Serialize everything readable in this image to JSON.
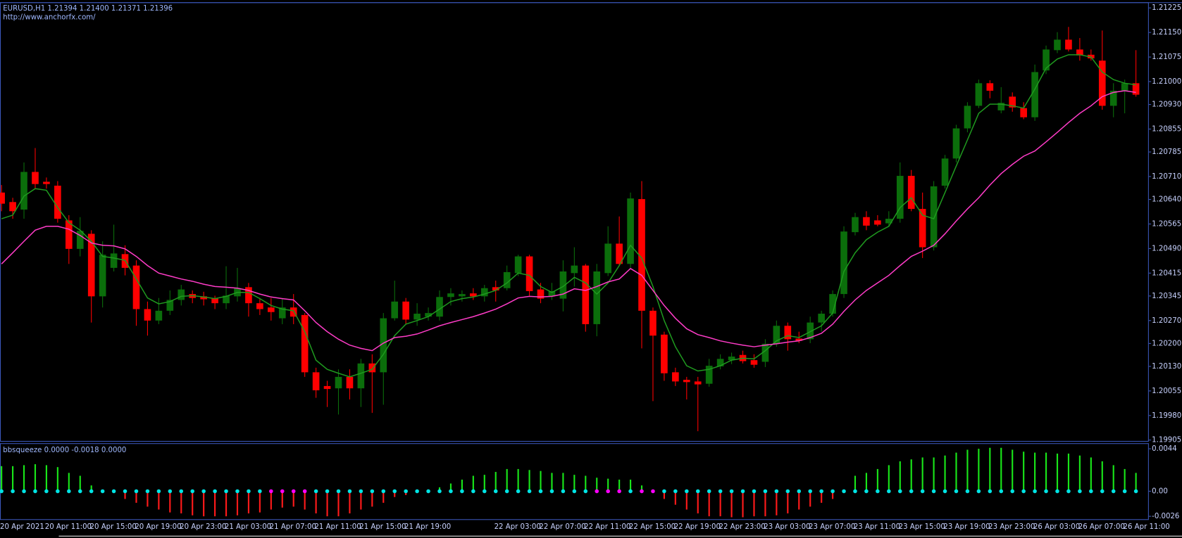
{
  "chart_data": [
    {
      "type": "candlestick",
      "title": "EURUSD,H1  1.21394 1.21400 1.21371 1.21396",
      "subtitle": "http://www.anchorfx.com/",
      "categories": [
        "20 Apr 2021",
        null,
        null,
        null,
        "20 Apr 11:00",
        null,
        null,
        null,
        "20 Apr 15:00",
        null,
        null,
        null,
        "20 Apr 19:00",
        null,
        null,
        null,
        "20 Apr 23:00",
        null,
        null,
        null,
        "21 Apr 03:00",
        null,
        null,
        null,
        "21 Apr 07:00",
        null,
        null,
        null,
        "21 Apr 11:00",
        null,
        null,
        null,
        "21 Apr 15:00",
        null,
        null,
        null,
        "21 Apr 19:00",
        null,
        null,
        null,
        null,
        null,
        null,
        null,
        "22 Apr 03:00",
        null,
        null,
        null,
        "22 Apr 07:00",
        null,
        null,
        null,
        "22 Apr 11:00",
        null,
        null,
        null,
        "22 Apr 15:00",
        null,
        null,
        null,
        "22 Apr 19:00",
        null,
        null,
        null,
        "22 Apr 23:00",
        null,
        null,
        null,
        "23 Apr 03:00",
        null,
        null,
        null,
        "23 Apr 07:00",
        null,
        null,
        null,
        "23 Apr 11:00",
        null,
        null,
        null,
        "23 Apr 15:00",
        null,
        null,
        null,
        "23 Apr 19:00",
        null,
        null,
        null,
        "23 Apr 23:00",
        null,
        null,
        null,
        "26 Apr 03:00",
        null,
        null,
        null,
        "26 Apr 07:00",
        null,
        null,
        null,
        "26 Apr 11:00",
        null
      ],
      "open": [
        1.20661,
        1.20632,
        1.20609,
        1.20724,
        1.20694,
        1.20682,
        1.20576,
        1.20489,
        1.20535,
        1.20344,
        1.20431,
        1.20473,
        1.20438,
        1.20305,
        1.2027,
        1.203,
        1.20333,
        1.20351,
        1.20344,
        1.20337,
        1.20323,
        1.20344,
        1.20372,
        1.20323,
        1.2031,
        1.20277,
        1.2031,
        1.20287,
        1.20112,
        1.2007,
        1.20063,
        1.20098,
        1.20063,
        1.20139,
        1.20112,
        1.20277,
        1.20328,
        1.20273,
        1.20282,
        1.20282,
        1.20342,
        1.20344,
        1.20353,
        1.20344,
        1.20372,
        1.20369,
        1.20415,
        1.20466,
        1.20365,
        1.20344,
        1.20337,
        1.20415,
        1.20438,
        1.20259,
        1.20415,
        1.20505,
        1.20443,
        1.20641,
        1.203,
        1.20227,
        1.20112,
        1.20089,
        1.20084,
        1.20077,
        1.2013,
        1.20149,
        1.20165,
        1.20149,
        1.20144,
        1.20199,
        1.20254,
        1.20215,
        1.20213,
        1.20264,
        1.20291,
        1.20351,
        1.2054,
        1.20586,
        1.20576,
        1.20567,
        1.20581,
        1.20712,
        1.20611,
        1.20494,
        1.20682,
        1.20765,
        1.20857,
        1.20926,
        1.20995,
        1.20912,
        1.20954,
        1.20919,
        1.20891,
        1.21034,
        1.21096,
        1.21128,
        1.21098,
        1.21082,
        1.21064,
        1.20926,
        1.20972,
        1.20995
      ],
      "high": [
        1.20684,
        1.20645,
        1.20753,
        1.20797,
        1.20707,
        1.20696,
        1.20592,
        1.20586,
        1.20546,
        1.20512,
        1.20563,
        1.205,
        1.20454,
        1.20328,
        1.20339,
        1.20362,
        1.20379,
        1.20362,
        1.20358,
        1.20346,
        1.20436,
        1.20431,
        1.20385,
        1.20339,
        1.20339,
        1.20339,
        1.20351,
        1.20293,
        1.20126,
        1.20086,
        1.20121,
        1.20121,
        1.20153,
        1.20167,
        1.20293,
        1.20392,
        1.20339,
        1.20323,
        1.2031,
        1.20362,
        1.20369,
        1.20362,
        1.20369,
        1.20379,
        1.20392,
        1.20438,
        1.20471,
        1.20471,
        1.20385,
        1.20385,
        1.20454,
        1.20494,
        1.20443,
        1.20443,
        1.20558,
        1.20588,
        1.20661,
        1.20696,
        1.2031,
        1.20236,
        1.20126,
        1.20098,
        1.20098,
        1.20153,
        1.20167,
        1.20172,
        1.20178,
        1.20167,
        1.20213,
        1.2027,
        1.20264,
        1.20236,
        1.20282,
        1.203,
        1.20362,
        1.20558,
        1.20599,
        1.20604,
        1.20592,
        1.20604,
        1.20753,
        1.2073,
        1.20661,
        1.20696,
        1.20776,
        1.20868,
        1.20937,
        1.21006,
        1.21004,
        1.20983,
        1.20967,
        1.20937,
        1.21052,
        1.2111,
        1.21151,
        1.21167,
        1.21133,
        1.21098,
        1.21156,
        1.20995,
        1.21006,
        1.21096
      ],
      "low": [
        1.20604,
        1.20581,
        1.20581,
        1.20673,
        1.20673,
        1.20569,
        1.20443,
        1.20466,
        1.20264,
        1.2031,
        1.2042,
        1.20408,
        1.20254,
        1.20224,
        1.20259,
        1.20287,
        1.20316,
        1.20323,
        1.20316,
        1.20305,
        1.20305,
        1.20328,
        1.20282,
        1.20287,
        1.2027,
        1.20259,
        1.20259,
        1.20098,
        1.20034,
        1.20006,
        1.19983,
        1.20029,
        1.20006,
        1.19988,
        1.20013,
        1.2027,
        1.20259,
        1.20254,
        1.2027,
        1.2027,
        1.20316,
        1.20328,
        1.20333,
        1.20328,
        1.20328,
        1.20362,
        1.20406,
        1.20346,
        1.20323,
        1.20333,
        1.20298,
        1.20374,
        1.20236,
        1.20222,
        1.20406,
        1.20438,
        1.20431,
        1.20185,
        1.20024,
        1.20086,
        1.2007,
        1.20029,
        1.19932,
        1.20068,
        1.20121,
        1.20137,
        1.20139,
        1.20126,
        1.20128,
        1.2019,
        1.20178,
        1.20201,
        1.20201,
        1.20236,
        1.20282,
        1.20339,
        1.2053,
        1.20546,
        1.20558,
        1.20558,
        1.20569,
        1.20604,
        1.20461,
        1.20484,
        1.20673,
        1.20753,
        1.20845,
        1.20919,
        1.20949,
        1.20903,
        1.20908,
        1.20885,
        1.2088,
        1.21023,
        1.21087,
        1.21092,
        1.21064,
        1.21064,
        1.20914,
        1.20891,
        1.20903,
        1.20954
      ],
      "close": [
        1.20627,
        1.20604,
        1.20724,
        1.20687,
        1.20687,
        1.20581,
        1.20489,
        1.20544,
        1.20344,
        1.20471,
        1.20475,
        1.20431,
        1.20305,
        1.2027,
        1.203,
        1.20333,
        1.20365,
        1.20339,
        1.20335,
        1.20323,
        1.20346,
        1.20369,
        1.20323,
        1.20305,
        1.20296,
        1.2031,
        1.20282,
        1.20112,
        1.20057,
        1.20061,
        1.20098,
        1.20063,
        1.20139,
        1.20112,
        1.20277,
        1.20328,
        1.20273,
        1.20291,
        1.20293,
        1.20342,
        1.20353,
        1.20351,
        1.20344,
        1.20369,
        1.20362,
        1.20418,
        1.20466,
        1.2036,
        1.20337,
        1.2036,
        1.2042,
        1.20438,
        1.20259,
        1.2042,
        1.20505,
        1.20443,
        1.20643,
        1.203,
        1.20224,
        1.20109,
        1.20084,
        1.20082,
        1.20075,
        1.20132,
        1.20153,
        1.2016,
        1.20146,
        1.20135,
        1.20199,
        1.20254,
        1.20213,
        1.20208,
        1.20264,
        1.20291,
        1.20351,
        1.20542,
        1.20586,
        1.2056,
        1.20563,
        1.20581,
        1.20712,
        1.20611,
        1.20494,
        1.2068,
        1.20765,
        1.20857,
        1.20926,
        1.20995,
        1.20972,
        1.20935,
        1.20921,
        1.20891,
        1.21029,
        1.21098,
        1.21128,
        1.21098,
        1.2108,
        1.21071,
        1.20926,
        1.20972,
        1.20995,
        1.2096
      ],
      "up_color": "#0b6e0b",
      "down_color": "#ff0000",
      "series": [
        {
          "color": "#1f9a1f",
          "values": [
            1.20581,
            1.20592,
            1.2065,
            1.20673,
            1.20668,
            1.20615,
            1.20569,
            1.20546,
            1.20512,
            1.20466,
            1.20461,
            1.20454,
            1.20397,
            1.20339,
            1.20321,
            1.20328,
            1.20344,
            1.20346,
            1.20342,
            1.20337,
            1.20344,
            1.20356,
            1.20356,
            1.20337,
            1.20316,
            1.20305,
            1.203,
            1.20236,
            1.20149,
            1.20121,
            1.20109,
            1.20098,
            1.20109,
            1.20121,
            1.20167,
            1.20224,
            1.20259,
            1.2027,
            1.20282,
            1.20305,
            1.20328,
            1.20337,
            1.20342,
            1.20351,
            1.20362,
            1.20385,
            1.20415,
            1.20408,
            1.20374,
            1.20356,
            1.20374,
            1.20402,
            1.20385,
            1.20351,
            1.20385,
            1.20438,
            1.205,
            1.20461,
            1.20374,
            1.2027,
            1.2019,
            1.20132,
            1.20116,
            1.20121,
            1.20132,
            1.20149,
            1.20155,
            1.20153,
            1.20178,
            1.20208,
            1.20224,
            1.20218,
            1.20236,
            1.20254,
            1.20293,
            1.2042,
            1.20477,
            1.20517,
            1.2054,
            1.20558,
            1.20615,
            1.20645,
            1.20592,
            1.20581,
            1.20661,
            1.20742,
            1.20822,
            1.20903,
            1.20931,
            1.20931,
            1.20926,
            1.20919,
            1.20977,
            1.21041,
            1.21069,
            1.21082,
            1.21082,
            1.21075,
            1.21029,
            1.21006,
            1.20995,
            1.2099
          ]
        },
        {
          "color": "#ff3cc8",
          "values": [
            1.20443,
            1.20477,
            1.20512,
            1.20546,
            1.20558,
            1.20558,
            1.20549,
            1.2053,
            1.20507,
            1.205,
            1.20498,
            1.20489,
            1.20466,
            1.20438,
            1.20415,
            1.20406,
            1.20397,
            1.2039,
            1.20381,
            1.20374,
            1.20372,
            1.20369,
            1.20362,
            1.20351,
            1.20342,
            1.20337,
            1.20333,
            1.203,
            1.20264,
            1.20236,
            1.20213,
            1.20195,
            1.20185,
            1.20178,
            1.20201,
            1.20218,
            1.20222,
            1.20229,
            1.20241,
            1.20254,
            1.20264,
            1.20273,
            1.20282,
            1.20293,
            1.20305,
            1.20321,
            1.20339,
            1.20344,
            1.20342,
            1.20344,
            1.20351,
            1.20367,
            1.20362,
            1.20374,
            1.20388,
            1.20397,
            1.20429,
            1.20408,
            1.20362,
            1.20316,
            1.20277,
            1.20245,
            1.20227,
            1.20218,
            1.20208,
            1.20201,
            1.20195,
            1.2019,
            1.20195,
            1.20199,
            1.20204,
            1.20208,
            1.20218,
            1.20231,
            1.20259,
            1.20298,
            1.20333,
            1.20362,
            1.20385,
            1.20408,
            1.20438,
            1.20466,
            1.20482,
            1.205,
            1.20535,
            1.20574,
            1.20611,
            1.20645,
            1.20684,
            1.20719,
            1.20747,
            1.20772,
            1.20788,
            1.20816,
            1.20845,
            1.20875,
            1.20903,
            1.20926,
            1.20954,
            1.20967,
            1.20972,
            1.20967
          ]
        }
      ],
      "ylim": [
        1.199,
        1.2124
      ],
      "yticks": [
        1.21225,
        {
          "value": 1.2115,
          "label": "1.21150"
        },
        1.21075,
        {
          "value": 1.21,
          "label": "1.21000"
        },
        {
          "value": 1.2093,
          "label": "1.20930"
        },
        1.20855,
        1.20785,
        {
          "value": 1.2071,
          "label": "1.20710"
        },
        {
          "value": 1.2064,
          "label": "1.20640"
        },
        1.20565,
        {
          "value": 1.2049,
          "label": "1.20490"
        },
        1.20415,
        1.20345,
        {
          "value": 1.2027,
          "label": "1.20270"
        },
        {
          "value": 1.202,
          "label": "1.20200"
        },
        {
          "value": 1.2013,
          "label": "1.20130"
        },
        1.20055,
        {
          "value": 1.1998,
          "label": "1.19980"
        },
        1.19905
      ]
    },
    {
      "type": "histogram",
      "title": "bbsqueeze 0.0000 -0.0018 0.0000",
      "values": [
        0.0026,
        0.0026,
        0.0027,
        0.0028,
        0.0027,
        0.0025,
        0.0019,
        0.0016,
        0.0006,
        0,
        0,
        -0.0008,
        -0.0012,
        -0.0016,
        -0.0019,
        -0.0022,
        -0.0023,
        -0.0025,
        -0.0026,
        -0.0026,
        -0.0026,
        -0.0025,
        -0.0023,
        -0.0022,
        -0.0019,
        -0.0017,
        -0.0016,
        -0.0019,
        -0.0023,
        -0.0026,
        -0.0026,
        -0.0023,
        -0.0019,
        -0.0016,
        -0.0012,
        -0.0006,
        -0.0004,
        0,
        0,
        0.0004,
        0.0008,
        0.0012,
        0.0016,
        0.0017,
        0.002,
        0.0023,
        0.0023,
        0.0022,
        0.0021,
        0.0019,
        0.0019,
        0.0017,
        0.0016,
        0.0014,
        0.0013,
        0.0012,
        0.0012,
        0.0006,
        0,
        -0.0008,
        -0.0014,
        -0.0019,
        -0.0023,
        -0.0026,
        -0.0026,
        -0.0027,
        -0.0027,
        -0.0026,
        -0.0026,
        -0.0025,
        -0.0023,
        -0.0019,
        -0.0016,
        -0.0012,
        -0.0008,
        0,
        0.0016,
        0.0019,
        0.0023,
        0.0027,
        0.0031,
        0.0033,
        0.0035,
        0.0035,
        0.0037,
        0.004,
        0.0043,
        0.0044,
        0.0045,
        0.0045,
        0.0043,
        0.0041,
        0.004,
        0.004,
        0.0039,
        0.0039,
        0.0037,
        0.0035,
        0.0031,
        0.0027,
        0.0023,
        0.0019
      ],
      "up_color": "#19e619",
      "down_color": "#ff1a1a",
      "dots": {
        "values": [
          0,
          0,
          0,
          0,
          0,
          0,
          0,
          0,
          0,
          0,
          0,
          0,
          0,
          0,
          0,
          0,
          0,
          0,
          0,
          0,
          0,
          0,
          0,
          0,
          0,
          0,
          0,
          0,
          0,
          0,
          0,
          0,
          0,
          0,
          0,
          0,
          0,
          0,
          0,
          0,
          0,
          0,
          0,
          0,
          0,
          0,
          0,
          0,
          0,
          0,
          0,
          0,
          0,
          0,
          0,
          0,
          0,
          0,
          0,
          0,
          0,
          0,
          0,
          0,
          0,
          0,
          0,
          0,
          0,
          0,
          0,
          0,
          0,
          0,
          0,
          0,
          0,
          0,
          0,
          0,
          0,
          0,
          0,
          0,
          0,
          0,
          0,
          0,
          0,
          0,
          0,
          0,
          0,
          0,
          0,
          0,
          0,
          0,
          0,
          0,
          0,
          0
        ],
        "colors": [
          "#00e5e5",
          "#00e5e5",
          "#00e5e5",
          "#00e5e5",
          "#00e5e5",
          "#00e5e5",
          "#00e5e5",
          "#00e5e5",
          "#00e5e5",
          "#00e5e5",
          "#00e5e5",
          "#00e5e5",
          "#00e5e5",
          "#00e5e5",
          "#00e5e5",
          "#00e5e5",
          "#00e5e5",
          "#00e5e5",
          "#00e5e5",
          "#00e5e5",
          "#00e5e5",
          "#00e5e5",
          "#00e5e5",
          "#00e5e5",
          "#ff00ff",
          "#ff00ff",
          "#ff00ff",
          "#ff00ff",
          "#00e5e5",
          "#00e5e5",
          "#00e5e5",
          "#00e5e5",
          "#00e5e5",
          "#00e5e5",
          "#00e5e5",
          "#00e5e5",
          "#00e5e5",
          "#00e5e5",
          "#00e5e5",
          "#00e5e5",
          "#00e5e5",
          "#00e5e5",
          "#00e5e5",
          "#00e5e5",
          "#00e5e5",
          "#00e5e5",
          "#00e5e5",
          "#00e5e5",
          "#00e5e5",
          "#00e5e5",
          "#00e5e5",
          "#00e5e5",
          "#00e5e5",
          "#ff00ff",
          "#ff00ff",
          "#ff00ff",
          "#00e5e5",
          "#ff00ff",
          "#ff00ff",
          "#00e5e5",
          "#00e5e5",
          "#00e5e5",
          "#00e5e5",
          "#00e5e5",
          "#00e5e5",
          "#00e5e5",
          "#00e5e5",
          "#00e5e5",
          "#00e5e5",
          "#00e5e5",
          "#00e5e5",
          "#00e5e5",
          "#00e5e5",
          "#00e5e5",
          "#00e5e5",
          "#00e5e5",
          "#00e5e5",
          "#00e5e5",
          "#00e5e5",
          "#00e5e5",
          "#00e5e5",
          "#00e5e5",
          "#00e5e5",
          "#00e5e5",
          "#00e5e5",
          "#00e5e5",
          "#00e5e5",
          "#00e5e5",
          "#00e5e5",
          "#00e5e5",
          "#00e5e5",
          "#00e5e5",
          "#00e5e5",
          "#00e5e5",
          "#00e5e5",
          "#00e5e5",
          "#00e5e5",
          "#00e5e5",
          "#00e5e5",
          "#00e5e5",
          "#00e5e5",
          "#00e5e5"
        ]
      },
      "ylim": [
        -0.0029,
        0.0049
      ],
      "yticks": [
        0.0044,
        {
          "value": 0,
          "label": "0.00"
        },
        -0.0026
      ]
    }
  ]
}
